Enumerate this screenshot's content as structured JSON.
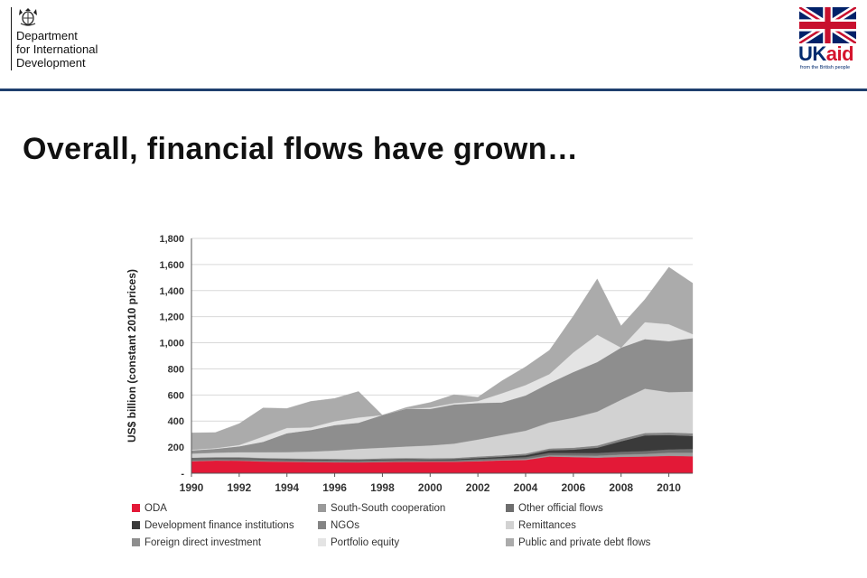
{
  "header": {
    "department_lines": [
      "Department",
      "for International",
      "Development"
    ],
    "ukaid": {
      "uk": "UK",
      "aid": "aid",
      "tagline": "from the British people"
    }
  },
  "slide": {
    "title": "Overall, financial flows have grown…"
  },
  "colors": {
    "brand_navy": "#1f3f6e",
    "ukaid_blue": "#002a6e",
    "ukaid_red": "#d5152d"
  },
  "chart_data": {
    "type": "area",
    "stacked": true,
    "title": "",
    "xlabel": "",
    "ylabel": "US$ billion (constant 2010 prices)",
    "ylim": [
      0,
      1800
    ],
    "yticks": [
      0,
      200,
      400,
      600,
      800,
      1000,
      1200,
      1400,
      1600,
      1800
    ],
    "ytick_labels": [
      "-",
      "200",
      "400",
      "600",
      "800",
      "1,000",
      "1,200",
      "1,400",
      "1,600",
      "1,800"
    ],
    "xlim": [
      1990,
      2011
    ],
    "xticks": [
      1990,
      1992,
      1994,
      1996,
      1998,
      2000,
      2002,
      2004,
      2006,
      2008,
      2010
    ],
    "x": [
      1990,
      1991,
      1992,
      1993,
      1994,
      1995,
      1996,
      1997,
      1998,
      1999,
      2000,
      2001,
      2002,
      2003,
      2004,
      2005,
      2006,
      2007,
      2008,
      2009,
      2010,
      2011
    ],
    "grid": true,
    "legend_position": "bottom",
    "series": [
      {
        "name": "ODA",
        "color": "#e31937",
        "values": [
          92,
          97,
          96,
          90,
          88,
          86,
          84,
          83,
          86,
          87,
          88,
          88,
          92,
          98,
          102,
          128,
          124,
          120,
          125,
          128,
          133,
          130
        ]
      },
      {
        "name": "South-South cooperation",
        "color": "#9a9a9a",
        "values": [
          4,
          4,
          4,
          4,
          4,
          4,
          4,
          4,
          4,
          4,
          4,
          4,
          5,
          6,
          8,
          10,
          12,
          15,
          18,
          20,
          25,
          28
        ]
      },
      {
        "name": "Other official flows",
        "color": "#6e6e6e",
        "values": [
          16,
          15,
          16,
          14,
          12,
          12,
          12,
          10,
          12,
          13,
          9,
          9,
          12,
          12,
          14,
          18,
          20,
          20,
          22,
          22,
          25,
          28
        ]
      },
      {
        "name": "Development finance institutions",
        "color": "#3a3a3a",
        "values": [
          2,
          2,
          2,
          3,
          3,
          3,
          3,
          4,
          4,
          4,
          5,
          6,
          8,
          10,
          14,
          20,
          25,
          40,
          80,
          120,
          110,
          100
        ]
      },
      {
        "name": "NGOs",
        "color": "#848484",
        "values": [
          6,
          6,
          6,
          7,
          7,
          7,
          8,
          8,
          8,
          9,
          9,
          10,
          11,
          12,
          13,
          14,
          15,
          17,
          18,
          18,
          19,
          20
        ]
      },
      {
        "name": "Remittances",
        "color": "#d2d2d2",
        "values": [
          30,
          33,
          37,
          43,
          48,
          54,
          63,
          78,
          82,
          88,
          98,
          110,
          130,
          155,
          175,
          200,
          230,
          260,
          300,
          340,
          310,
          320
        ]
      },
      {
        "name": "Foreign direct investment",
        "color": "#8e8e8e",
        "values": [
          25,
          30,
          45,
          80,
          145,
          165,
          195,
          200,
          250,
          290,
          280,
          300,
          280,
          250,
          270,
          300,
          350,
          380,
          400,
          380,
          390,
          410
        ]
      },
      {
        "name": "Portfolio equity",
        "color": "#e4e4e4",
        "values": [
          5,
          5,
          10,
          40,
          40,
          20,
          30,
          40,
          0,
          0,
          10,
          10,
          15,
          70,
          80,
          70,
          150,
          210,
          0,
          130,
          130,
          30
        ]
      },
      {
        "name": "Public and private debt flows",
        "color": "#ababab",
        "values": [
          130,
          120,
          165,
          220,
          150,
          200,
          175,
          200,
          0,
          10,
          40,
          65,
          30,
          95,
          140,
          183,
          280,
          428,
          167,
          175,
          438,
          391
        ]
      }
    ]
  }
}
